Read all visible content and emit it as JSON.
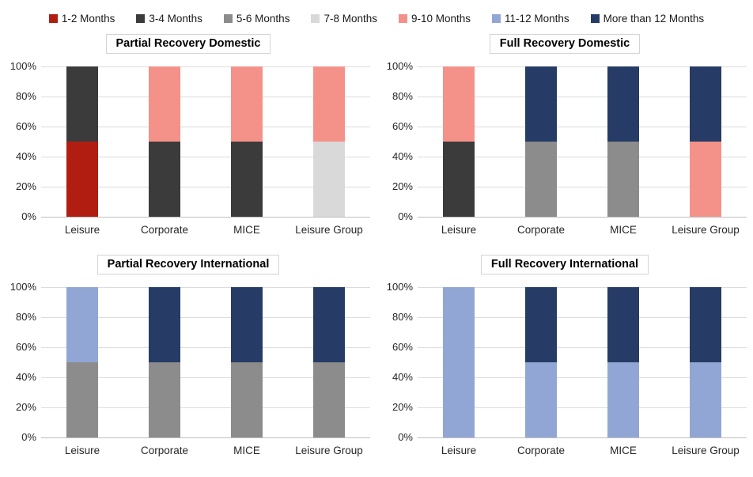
{
  "legend": {
    "items": [
      {
        "label": "1-2 Months",
        "color": "#B21D12"
      },
      {
        "label": "3-4 Months",
        "color": "#3B3B3B"
      },
      {
        "label": "5-6 Months",
        "color": "#8C8C8C"
      },
      {
        "label": "7-8 Months",
        "color": "#D9D9D9"
      },
      {
        "label": "9-10 Months",
        "color": "#F4928A"
      },
      {
        "label": "11-12 Months",
        "color": "#92A6D5"
      },
      {
        "label": "More than 12 Months",
        "color": "#263C66"
      }
    ]
  },
  "axis": {
    "yticks": [
      "100%",
      "80%",
      "60%",
      "40%",
      "20%",
      "0%"
    ],
    "grid": true
  },
  "chart_data": [
    {
      "type": "bar",
      "stacked": true,
      "title": "Partial Recovery Domestic",
      "categories": [
        "Leisure",
        "Corporate",
        "MICE",
        "Leisure Group"
      ],
      "ylabel": "",
      "ylim": [
        0,
        100
      ],
      "series": [
        {
          "name": "1-2 Months",
          "values": [
            50,
            0,
            0,
            0
          ]
        },
        {
          "name": "3-4 Months",
          "values": [
            50,
            50,
            50,
            0
          ]
        },
        {
          "name": "7-8 Months",
          "values": [
            0,
            0,
            0,
            50
          ]
        },
        {
          "name": "9-10 Months",
          "values": [
            0,
            50,
            50,
            50
          ]
        }
      ]
    },
    {
      "type": "bar",
      "stacked": true,
      "title": "Full Recovery Domestic",
      "categories": [
        "Leisure",
        "Corporate",
        "MICE",
        "Leisure Group"
      ],
      "ylabel": "",
      "ylim": [
        0,
        100
      ],
      "series": [
        {
          "name": "3-4 Months",
          "values": [
            50,
            0,
            0,
            0
          ]
        },
        {
          "name": "5-6 Months",
          "values": [
            0,
            50,
            50,
            0
          ]
        },
        {
          "name": "9-10 Months",
          "values": [
            50,
            0,
            0,
            50
          ]
        },
        {
          "name": "More than 12 Months",
          "values": [
            0,
            50,
            50,
            50
          ]
        }
      ]
    },
    {
      "type": "bar",
      "stacked": true,
      "title": "Partial Recovery International",
      "categories": [
        "Leisure",
        "Corporate",
        "MICE",
        "Leisure Group"
      ],
      "ylabel": "",
      "ylim": [
        0,
        100
      ],
      "series": [
        {
          "name": "5-6 Months",
          "values": [
            50,
            50,
            50,
            50
          ]
        },
        {
          "name": "11-12 Months",
          "values": [
            50,
            0,
            0,
            0
          ]
        },
        {
          "name": "More than 12 Months",
          "values": [
            0,
            50,
            50,
            50
          ]
        }
      ]
    },
    {
      "type": "bar",
      "stacked": true,
      "title": "Full Recovery International",
      "categories": [
        "Leisure",
        "Corporate",
        "MICE",
        "Leisure Group"
      ],
      "ylabel": "",
      "ylim": [
        0,
        100
      ],
      "series": [
        {
          "name": "11-12 Months",
          "values": [
            100,
            50,
            50,
            50
          ]
        },
        {
          "name": "More than 12 Months",
          "values": [
            0,
            50,
            50,
            50
          ]
        }
      ]
    }
  ]
}
